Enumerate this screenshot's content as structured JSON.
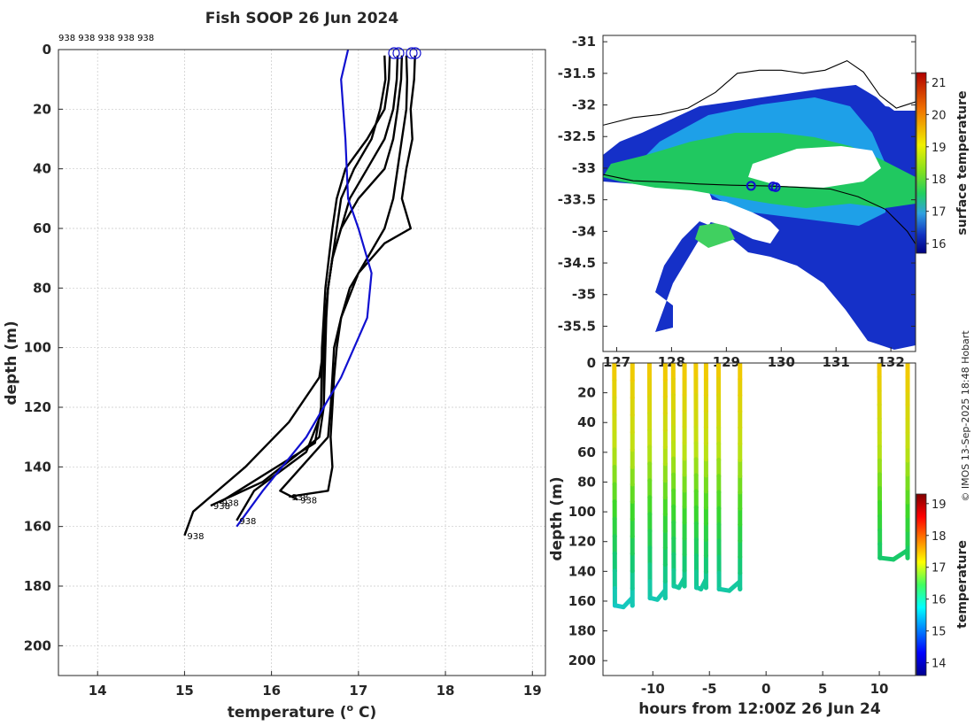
{
  "title": "Fish SOOP 26 Jun 2024",
  "credit": "© IMOS 13-Sep-2025 18:48 Hobart",
  "colors": {
    "profile": "#000000",
    "climatology": "#1010d0",
    "land": "#000000"
  },
  "chart_data": [
    {
      "type": "line",
      "name": "temperature-depth-profiles",
      "xlabel": "temperature (",
      "xlabel_sup": "o",
      "xlabel_unit": " C)",
      "ylabel": "depth (m)",
      "xlim": [
        13.55,
        19.15
      ],
      "ylim": [
        210,
        0
      ],
      "xticks": [
        14,
        15,
        16,
        17,
        18,
        19
      ],
      "xtick_labels": [
        "14",
        "15",
        "16",
        "17",
        "18",
        "19"
      ],
      "yticks": [
        0,
        20,
        40,
        60,
        80,
        100,
        120,
        140,
        160,
        180,
        200
      ],
      "ytick_labels": [
        "0",
        "20",
        "40",
        "60",
        "80",
        "100",
        "120",
        "140",
        "160",
        "180",
        "200"
      ],
      "top_labels": "938 938 938 938 938",
      "cast_id": "938",
      "grid": true,
      "series": [
        {
          "name": "cast-1",
          "x": [
            17.3,
            17.31,
            17.25,
            17.15,
            16.95,
            16.8,
            16.75,
            16.7,
            16.65,
            16.62,
            16.6,
            16.55,
            16.2,
            15.7,
            15.1,
            15.0
          ],
          "y": [
            2,
            10,
            20,
            30,
            40,
            50,
            60,
            70,
            80,
            90,
            100,
            110,
            125,
            140,
            155,
            163
          ]
        },
        {
          "name": "cast-2",
          "x": [
            17.36,
            17.35,
            17.3,
            17.1,
            16.85,
            16.75,
            16.7,
            16.66,
            16.62,
            16.6,
            16.58,
            16.57,
            16.5,
            15.4
          ],
          "y": [
            2,
            10,
            20,
            30,
            40,
            50,
            60,
            70,
            80,
            90,
            100,
            120,
            132,
            152
          ]
        },
        {
          "name": "cast-3",
          "x": [
            17.45,
            17.44,
            17.4,
            17.3,
            17.1,
            16.9,
            16.8,
            16.7,
            16.65,
            16.62,
            16.6,
            16.6,
            16.55,
            15.9,
            15.3
          ],
          "y": [
            2,
            10,
            20,
            30,
            40,
            50,
            60,
            70,
            80,
            90,
            100,
            120,
            130,
            145,
            153
          ]
        },
        {
          "name": "cast-4",
          "x": [
            17.5,
            17.49,
            17.45,
            17.4,
            17.3,
            17.0,
            16.8,
            16.7,
            16.65,
            16.63,
            16.62,
            16.6,
            16.4,
            15.8,
            15.6
          ],
          "y": [
            2,
            10,
            20,
            30,
            40,
            50,
            60,
            70,
            80,
            90,
            100,
            120,
            135,
            148,
            158
          ]
        },
        {
          "name": "cast-5",
          "x": [
            17.55,
            17.56,
            17.55,
            17.5,
            17.45,
            17.4,
            17.3,
            17.1,
            16.9,
            16.8,
            16.72,
            16.7,
            16.68,
            16.65,
            16.1,
            16.3
          ],
          "y": [
            2,
            10,
            20,
            30,
            40,
            50,
            60,
            70,
            80,
            90,
            100,
            110,
            120,
            130,
            148,
            151
          ]
        },
        {
          "name": "cast-6",
          "x": [
            17.65,
            17.64,
            17.6,
            17.62,
            17.55,
            17.5,
            17.6,
            17.3,
            17.0,
            16.8,
            16.75,
            16.72,
            16.7,
            16.68,
            16.7,
            16.65,
            16.2
          ],
          "y": [
            2,
            10,
            20,
            30,
            40,
            50,
            60,
            65,
            75,
            90,
            100,
            110,
            120,
            130,
            140,
            148,
            150
          ]
        }
      ]
    },
    {
      "type": "line",
      "name": "climatology",
      "x": [
        16.88,
        16.8,
        16.85,
        16.88,
        17.0,
        17.15,
        17.1,
        16.8,
        16.4,
        15.9,
        15.6
      ],
      "y": [
        0,
        10,
        30,
        50,
        60,
        75,
        90,
        110,
        130,
        148,
        160
      ]
    },
    {
      "type": "heatmap",
      "name": "surface-temperature-map",
      "colorbar_label": "surface temperature",
      "clim": [
        15.7,
        21.3
      ],
      "colorbar_ticks": [
        16,
        17,
        18,
        19,
        20,
        21
      ],
      "colorbar_tick_labels": [
        "16",
        "17",
        "18",
        "19",
        "20",
        "21"
      ],
      "lon_ticks": [
        127,
        128,
        129,
        130,
        131,
        132
      ],
      "lon_tick_labels": [
        "127",
        "128",
        "129",
        "130",
        "131",
        "132"
      ],
      "lat_ticks": [
        -31,
        -31.5,
        -32,
        -32.5,
        -33,
        -33.5,
        -34,
        -34.5,
        -35,
        -35.5
      ],
      "lat_tick_labels": [
        "-31",
        "-31.5",
        "-32",
        "-32.5",
        "-33",
        "-33.5",
        "-34",
        "-34.5",
        "-35",
        "-35.5"
      ],
      "xlim": [
        126.75,
        132.45
      ],
      "ylim": [
        -35.9,
        -30.9
      ],
      "coast_north": {
        "lon": [
          126.75,
          127.3,
          127.8,
          128.3,
          128.8,
          129.2,
          129.6,
          130.0,
          130.4,
          130.8,
          131.2,
          131.5,
          131.8,
          132.1,
          132.45
        ],
        "lat": [
          -32.32,
          -32.2,
          -32.15,
          -32.05,
          -31.8,
          -31.5,
          -31.45,
          -31.45,
          -31.5,
          -31.45,
          -31.3,
          -31.48,
          -31.85,
          -32.05,
          -31.95
        ]
      },
      "coast_south": {
        "lon": [
          126.75,
          127.3,
          127.9,
          128.5,
          129.1,
          129.7,
          130.3,
          130.9,
          131.4,
          131.9,
          132.3,
          132.45
        ],
        "lat": [
          -33.1,
          -33.2,
          -33.22,
          -33.25,
          -33.27,
          -33.28,
          -33.3,
          -33.33,
          -33.45,
          -33.65,
          -34.0,
          -34.2
        ]
      },
      "ship_track": [
        {
          "lon": 129.45,
          "lat": -33.28
        },
        {
          "lon": 129.85,
          "lat": -33.29
        },
        {
          "lon": 129.9,
          "lat": -33.3
        }
      ]
    },
    {
      "type": "scatter",
      "name": "depth-time-section",
      "xlabel": "hours from 12:00Z 26 Jun 24",
      "ylabel": "depth (m)",
      "colorbar_label": "temperature",
      "clim": [
        13.6,
        19.3
      ],
      "colorbar_ticks": [
        14,
        15,
        16,
        17,
        18,
        19
      ],
      "colorbar_tick_labels": [
        "14",
        "15",
        "16",
        "17",
        "18",
        "19"
      ],
      "xlim": [
        -14.4,
        13.2
      ],
      "ylim": [
        210,
        0
      ],
      "xticks": [
        -10,
        -5,
        0,
        5,
        10
      ],
      "xtick_labels": [
        "-10",
        "-5",
        "0",
        "5",
        "10"
      ],
      "yticks": [
        0,
        20,
        40,
        60,
        80,
        100,
        120,
        140,
        160,
        180,
        200
      ],
      "ytick_labels": [
        "0",
        "20",
        "40",
        "60",
        "80",
        "100",
        "120",
        "140",
        "160",
        "180",
        "200"
      ],
      "casts": [
        {
          "t0": -13.4,
          "t1": -11.8,
          "max_depth": 163
        },
        {
          "t0": -10.3,
          "t1": -8.9,
          "max_depth": 158
        },
        {
          "t0": -8.2,
          "t1": -7.2,
          "max_depth": 150
        },
        {
          "t0": -6.2,
          "t1": -5.3,
          "max_depth": 151
        },
        {
          "t0": -4.2,
          "t1": -2.3,
          "max_depth": 152
        },
        {
          "t0": 10.0,
          "t1": 12.5,
          "max_depth": 131
        }
      ]
    }
  ]
}
